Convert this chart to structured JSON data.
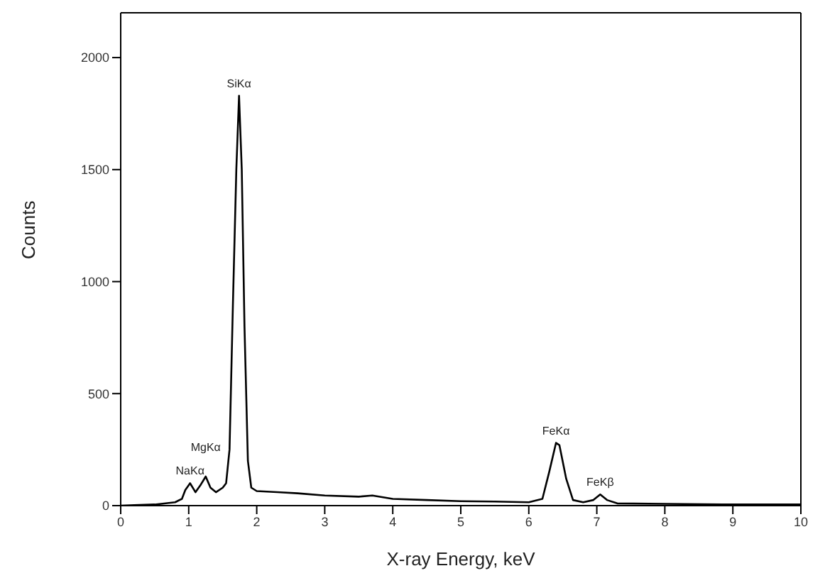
{
  "chart_data": {
    "type": "line",
    "xlabel": "X-ray Energy, keV",
    "ylabel": "Counts",
    "x": [
      0,
      0.2,
      0.5,
      0.8,
      0.9,
      0.95,
      1.02,
      1.1,
      1.17,
      1.25,
      1.32,
      1.4,
      1.5,
      1.55,
      1.6,
      1.65,
      1.7,
      1.74,
      1.78,
      1.82,
      1.87,
      1.92,
      2.0,
      2.3,
      2.6,
      3.0,
      3.5,
      3.7,
      4.0,
      4.5,
      5.0,
      5.5,
      6.0,
      6.2,
      6.3,
      6.4,
      6.45,
      6.55,
      6.65,
      6.8,
      6.95,
      7.05,
      7.15,
      7.3,
      8.0,
      9.0,
      10.0
    ],
    "series": [
      {
        "color": "#000000",
        "values": [
          0,
          2,
          5,
          15,
          30,
          70,
          100,
          60,
          90,
          130,
          80,
          60,
          80,
          100,
          250,
          900,
          1500,
          1830,
          1500,
          800,
          200,
          80,
          65,
          60,
          55,
          45,
          40,
          45,
          30,
          25,
          20,
          18,
          15,
          30,
          150,
          280,
          270,
          120,
          25,
          15,
          25,
          50,
          25,
          10,
          8,
          5,
          5
        ]
      }
    ],
    "xlim": [
      0,
      10
    ],
    "xticks": [
      0,
      1,
      2,
      3,
      4,
      5,
      6,
      7,
      8,
      9,
      10
    ],
    "ylim": [
      0,
      2200
    ],
    "yticks": [
      0,
      500,
      1000,
      1500,
      2000
    ],
    "annotations": [
      {
        "text": "NaKα",
        "x": 1.02,
        "y": 100
      },
      {
        "text": "MgKα",
        "x": 1.25,
        "y": 130
      },
      {
        "text": "SiKα",
        "x": 1.74,
        "y": 1830
      },
      {
        "text": "FeKα",
        "x": 6.4,
        "y": 280
      },
      {
        "text": "FeKβ",
        "x": 7.05,
        "y": 50
      }
    ]
  }
}
